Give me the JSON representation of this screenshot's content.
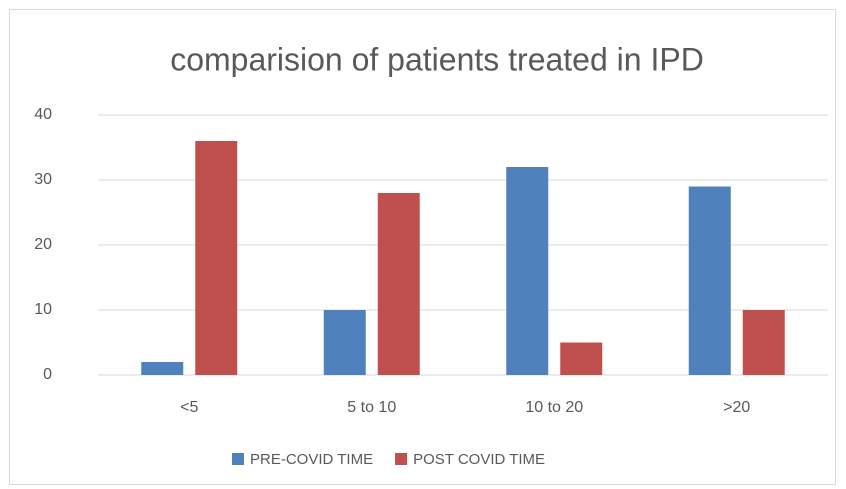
{
  "chart_data": {
    "type": "bar",
    "title": "comparision of patients treated in IPD",
    "categories": [
      "<5",
      "5 to 10",
      "10 to 20",
      ">20"
    ],
    "series": [
      {
        "name": "PRE-COVID TIME",
        "color": "#4f81bd",
        "values": [
          2,
          10,
          32,
          29
        ]
      },
      {
        "name": "POST COVID TIME",
        "color": "#c0504d",
        "values": [
          36,
          28,
          5,
          10
        ]
      }
    ],
    "ylim": [
      0,
      40
    ],
    "yticks": [
      0,
      10,
      20,
      30,
      40
    ],
    "grid": true,
    "legend": "bottom"
  }
}
